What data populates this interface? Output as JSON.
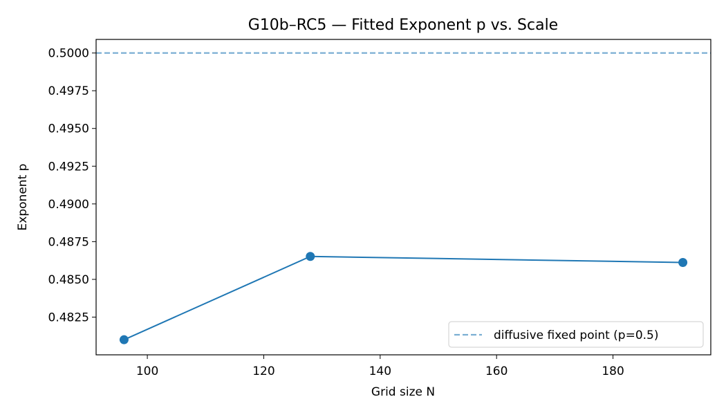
{
  "chart_data": {
    "type": "line",
    "title": "G10b–RC5 — Fitted Exponent p vs. Scale",
    "xlabel": "Grid size N",
    "ylabel": "Exponent p",
    "xlim": [
      91.2,
      196.8
    ],
    "ylim": [
      0.48,
      0.5009
    ],
    "xticks": [
      100,
      120,
      140,
      160,
      180
    ],
    "yticks": [
      0.4825,
      0.485,
      0.4875,
      0.49,
      0.4925,
      0.495,
      0.4975,
      0.5
    ],
    "grid": false,
    "series": [
      {
        "x": [
          96,
          128,
          192
        ],
        "y": [
          0.481,
          0.48652,
          0.48612
        ],
        "color": "#1f77b4",
        "marker": "circle"
      }
    ],
    "reference_lines": [
      {
        "orientation": "horizontal",
        "y": 0.5,
        "style": "dashed",
        "color": "#7aaed3",
        "label": "diffusive fixed point (p=0.5)"
      }
    ],
    "legend": {
      "position": "lower-right"
    }
  }
}
